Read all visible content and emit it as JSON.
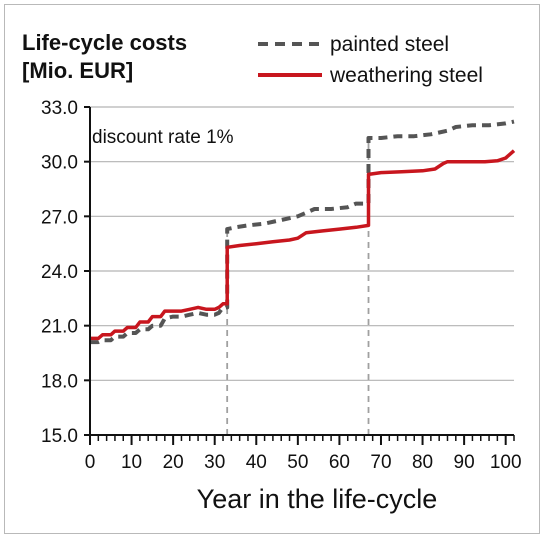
{
  "chart_data": {
    "type": "line",
    "ylabel_lines": [
      "Life-cycle costs",
      "[Mio. EUR]"
    ],
    "xlabel": "Year in the life-cycle",
    "annotation": "discount rate 1%",
    "xlim": [
      0,
      102
    ],
    "ylim": [
      15.0,
      33.0
    ],
    "x_ticks": [
      0,
      10,
      20,
      30,
      40,
      50,
      60,
      70,
      80,
      90,
      100
    ],
    "x_tick_labels": [
      "0",
      "10",
      "20",
      "30",
      "40",
      "50",
      "60",
      "70",
      "80",
      "90",
      "100"
    ],
    "y_ticks": [
      15.0,
      18.0,
      21.0,
      24.0,
      27.0,
      30.0,
      33.0
    ],
    "y_tick_labels": [
      "15.0",
      "18.0",
      "21.0",
      "24.0",
      "27.0",
      "30.0",
      "33.0"
    ],
    "grid": "horizontal",
    "legend_position": "top-right",
    "reference_lines_x": [
      33,
      67
    ],
    "series": [
      {
        "name": "painted steel",
        "color": "#555555",
        "style": "dashed",
        "x": [
          0,
          2,
          3,
          5,
          6,
          8,
          9,
          11,
          12,
          14,
          15,
          17,
          18,
          20,
          22,
          24,
          26,
          28,
          30,
          31,
          32,
          33,
          33,
          35,
          38,
          42,
          46,
          50,
          52,
          54,
          58,
          62,
          64,
          66,
          67,
          67,
          70,
          74,
          78,
          82,
          84,
          86,
          88,
          92,
          96,
          100,
          102
        ],
        "y": [
          20.1,
          20.1,
          20.2,
          20.2,
          20.4,
          20.4,
          20.6,
          20.6,
          20.8,
          20.8,
          21.0,
          21.0,
          21.4,
          21.5,
          21.5,
          21.6,
          21.7,
          21.6,
          21.6,
          21.7,
          22.0,
          22.0,
          26.3,
          26.4,
          26.5,
          26.6,
          26.8,
          27.0,
          27.2,
          27.4,
          27.4,
          27.5,
          27.7,
          27.7,
          27.7,
          31.3,
          31.3,
          31.4,
          31.4,
          31.5,
          31.6,
          31.7,
          31.9,
          32.0,
          32.0,
          32.1,
          32.2
        ]
      },
      {
        "name": "weathering steel",
        "color": "#c8161e",
        "style": "solid",
        "x": [
          0,
          2,
          3,
          5,
          6,
          8,
          9,
          11,
          12,
          14,
          15,
          17,
          18,
          20,
          22,
          24,
          26,
          28,
          30,
          31,
          32,
          33,
          33,
          36,
          40,
          44,
          48,
          50,
          52,
          56,
          60,
          64,
          67,
          67,
          70,
          75,
          80,
          83,
          85,
          86,
          90,
          95,
          98,
          100,
          102
        ],
        "y": [
          20.3,
          20.3,
          20.5,
          20.5,
          20.7,
          20.7,
          20.9,
          20.9,
          21.2,
          21.2,
          21.5,
          21.5,
          21.8,
          21.8,
          21.8,
          21.9,
          22.0,
          21.9,
          21.9,
          22.0,
          22.2,
          22.2,
          25.3,
          25.4,
          25.5,
          25.6,
          25.7,
          25.8,
          26.1,
          26.2,
          26.3,
          26.4,
          26.5,
          29.3,
          29.4,
          29.45,
          29.5,
          29.6,
          29.9,
          30.0,
          30.0,
          30.0,
          30.05,
          30.2,
          30.6
        ]
      }
    ]
  }
}
